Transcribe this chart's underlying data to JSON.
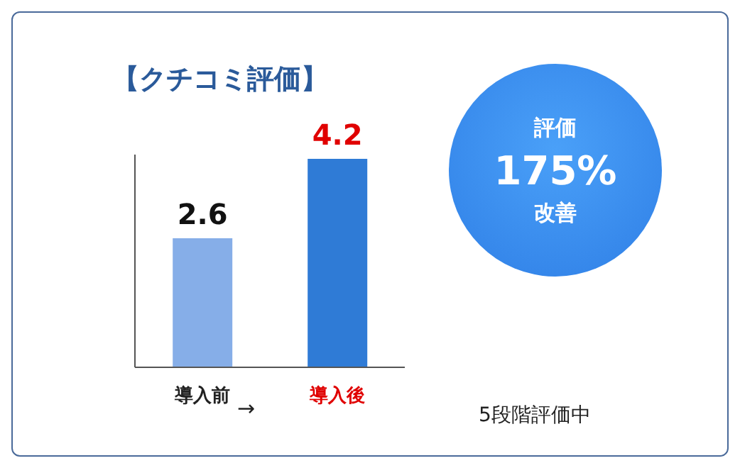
{
  "chart_data": {
    "type": "bar",
    "title": "【クチコミ評価】",
    "categories": [
      "導入前",
      "導入後"
    ],
    "values": [
      2.6,
      4.2
    ],
    "colors": [
      "#86aee8",
      "#2f7bd6"
    ],
    "data_labels": true,
    "annotations": [
      "評価",
      "175%",
      "改善",
      "→",
      "5段階評価中"
    ]
  }
}
